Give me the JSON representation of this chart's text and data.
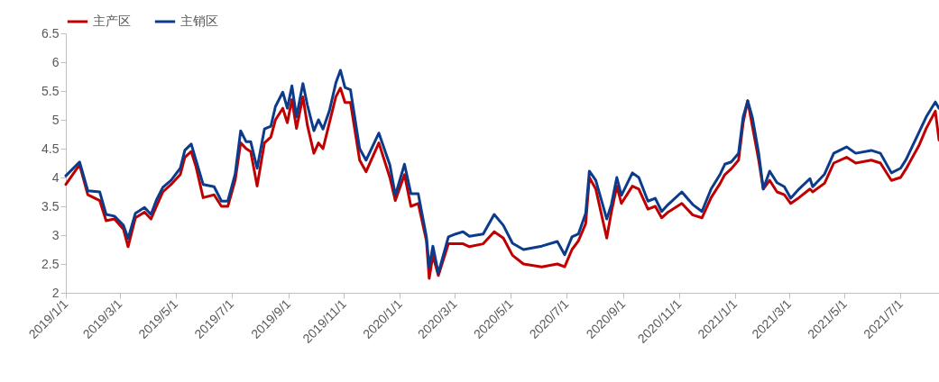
{
  "chart_data": {
    "type": "line",
    "legend": "top",
    "grid": false,
    "marker": "none",
    "line_style": "solid",
    "x": [
      "2019-01-01",
      "2019-01-16",
      "2019-01-25",
      "2019-02-07",
      "2019-02-14",
      "2019-02-23",
      "2019-03-05",
      "2019-03-10",
      "2019-03-18",
      "2019-03-28",
      "2019-04-04",
      "2019-04-10",
      "2019-04-17",
      "2019-04-26",
      "2019-05-06",
      "2019-05-11",
      "2019-05-18",
      "2019-05-23",
      "2019-05-31",
      "2019-06-12",
      "2019-06-20",
      "2019-06-27",
      "2019-07-05",
      "2019-07-11",
      "2019-07-17",
      "2019-07-22",
      "2019-07-29",
      "2019-08-06",
      "2019-08-13",
      "2019-08-18",
      "2019-08-26",
      "2019-08-31",
      "2019-09-05",
      "2019-09-10",
      "2019-09-17",
      "2019-09-22",
      "2019-09-29",
      "2019-10-04",
      "2019-10-09",
      "2019-10-16",
      "2019-10-23",
      "2019-10-28",
      "2019-11-02",
      "2019-11-08",
      "2019-11-18",
      "2019-11-25",
      "2019-12-09",
      "2019-12-21",
      "2019-12-27",
      "2020-01-06",
      "2020-01-13",
      "2020-01-21",
      "2020-01-30",
      "2020-02-02",
      "2020-02-06",
      "2020-02-12",
      "2020-02-23",
      "2020-03-02",
      "2020-03-10",
      "2020-03-17",
      "2020-04-01",
      "2020-04-13",
      "2020-04-23",
      "2020-05-03",
      "2020-05-15",
      "2020-06-04",
      "2020-06-21",
      "2020-06-29",
      "2020-07-07",
      "2020-07-14",
      "2020-07-22",
      "2020-07-26",
      "2020-08-02",
      "2020-08-14",
      "2020-08-19",
      "2020-08-25",
      "2020-08-30",
      "2020-09-11",
      "2020-09-18",
      "2020-09-28",
      "2020-10-06",
      "2020-10-13",
      "2020-10-20",
      "2020-11-04",
      "2020-11-16",
      "2020-11-26",
      "2020-12-06",
      "2020-12-16",
      "2020-12-21",
      "2020-12-28",
      "2021-01-05",
      "2021-01-10",
      "2021-01-15",
      "2021-01-20",
      "2021-01-27",
      "2021-02-01",
      "2021-02-08",
      "2021-02-16",
      "2021-02-24",
      "2021-03-03",
      "2021-03-12",
      "2021-03-24",
      "2021-03-27",
      "2021-04-09",
      "2021-04-19",
      "2021-05-03",
      "2021-05-13",
      "2021-05-30",
      "2021-06-09",
      "2021-06-21",
      "2021-07-01",
      "2021-07-07",
      "2021-07-21",
      "2021-07-29",
      "2021-08-08",
      "2021-08-12"
    ],
    "series": [
      {
        "name": "主产区",
        "color": "#c00000",
        "values": [
          3.88,
          4.22,
          3.7,
          3.6,
          3.25,
          3.28,
          3.1,
          2.8,
          3.3,
          3.4,
          3.28,
          3.5,
          3.75,
          3.88,
          4.05,
          4.35,
          4.45,
          4.2,
          3.65,
          3.7,
          3.5,
          3.5,
          3.95,
          4.6,
          4.5,
          4.45,
          3.85,
          4.6,
          4.7,
          5.0,
          5.2,
          4.95,
          5.35,
          4.85,
          5.4,
          4.9,
          4.42,
          4.6,
          4.5,
          4.95,
          5.4,
          5.55,
          5.3,
          5.3,
          4.3,
          4.1,
          4.6,
          4.0,
          3.6,
          4.05,
          3.5,
          3.55,
          2.9,
          2.25,
          2.65,
          2.3,
          2.85,
          2.85,
          2.85,
          2.8,
          2.85,
          3.06,
          2.95,
          2.65,
          2.5,
          2.45,
          2.5,
          2.45,
          2.75,
          2.9,
          3.2,
          4.0,
          3.8,
          2.95,
          3.4,
          3.85,
          3.55,
          3.85,
          3.8,
          3.45,
          3.5,
          3.3,
          3.4,
          3.55,
          3.35,
          3.3,
          3.65,
          3.9,
          4.05,
          4.15,
          4.3,
          4.95,
          5.33,
          4.9,
          4.3,
          3.8,
          3.95,
          3.75,
          3.7,
          3.55,
          3.65,
          3.8,
          3.75,
          3.9,
          4.25,
          4.35,
          4.25,
          4.3,
          4.25,
          3.95,
          4.0,
          4.15,
          4.55,
          4.85,
          5.15,
          4.65
        ]
      },
      {
        "name": "主销区",
        "color": "#0b3c8c",
        "values": [
          4.03,
          4.27,
          3.77,
          3.75,
          3.36,
          3.33,
          3.17,
          2.94,
          3.38,
          3.48,
          3.36,
          3.61,
          3.83,
          3.95,
          4.16,
          4.47,
          4.58,
          4.31,
          3.88,
          3.84,
          3.59,
          3.59,
          4.06,
          4.81,
          4.62,
          4.62,
          4.16,
          4.84,
          4.89,
          5.23,
          5.48,
          5.2,
          5.59,
          5.05,
          5.63,
          5.25,
          4.81,
          5.0,
          4.84,
          5.16,
          5.64,
          5.86,
          5.56,
          5.52,
          4.5,
          4.3,
          4.77,
          4.22,
          3.69,
          4.23,
          3.72,
          3.72,
          2.97,
          2.44,
          2.81,
          2.34,
          2.97,
          3.02,
          3.06,
          2.98,
          3.02,
          3.36,
          3.17,
          2.86,
          2.75,
          2.81,
          2.89,
          2.66,
          2.97,
          3.02,
          3.38,
          4.11,
          3.95,
          3.28,
          3.53,
          4.0,
          3.69,
          4.08,
          4.0,
          3.59,
          3.64,
          3.41,
          3.53,
          3.75,
          3.53,
          3.41,
          3.8,
          4.06,
          4.23,
          4.27,
          4.42,
          5.05,
          5.33,
          5.05,
          4.42,
          3.8,
          4.11,
          3.91,
          3.84,
          3.64,
          3.8,
          3.98,
          3.84,
          4.06,
          4.42,
          4.53,
          4.42,
          4.47,
          4.42,
          4.08,
          4.16,
          4.31,
          4.78,
          5.05,
          5.31,
          5.2
        ]
      }
    ],
    "xlim": [
      "2019-01-01",
      "2021-08-12"
    ],
    "xticks": [
      {
        "value": "2019-01-01",
        "label": "2019/1/1"
      },
      {
        "value": "2019-03-01",
        "label": "2019/3/1"
      },
      {
        "value": "2019-05-01",
        "label": "2019/5/1"
      },
      {
        "value": "2019-07-01",
        "label": "2019/7/1"
      },
      {
        "value": "2019-09-01",
        "label": "2019/9/1"
      },
      {
        "value": "2019-11-01",
        "label": "2019/11/1"
      },
      {
        "value": "2020-01-01",
        "label": "2020/1/1"
      },
      {
        "value": "2020-03-01",
        "label": "2020/3/1"
      },
      {
        "value": "2020-05-01",
        "label": "2020/5/1"
      },
      {
        "value": "2020-07-01",
        "label": "2020/7/1"
      },
      {
        "value": "2020-09-01",
        "label": "2020/9/1"
      },
      {
        "value": "2020-11-01",
        "label": "2020/11/1"
      },
      {
        "value": "2021-01-01",
        "label": "2021/1/1"
      },
      {
        "value": "2021-03-01",
        "label": "2021/3/1"
      },
      {
        "value": "2021-05-01",
        "label": "2021/5/1"
      },
      {
        "value": "2021-07-01",
        "label": "2021/7/1"
      }
    ],
    "ylim": [
      2,
      6.5
    ],
    "yticks": [
      2,
      2.5,
      3,
      3.5,
      4,
      4.5,
      5,
      5.5,
      6,
      6.5
    ]
  }
}
